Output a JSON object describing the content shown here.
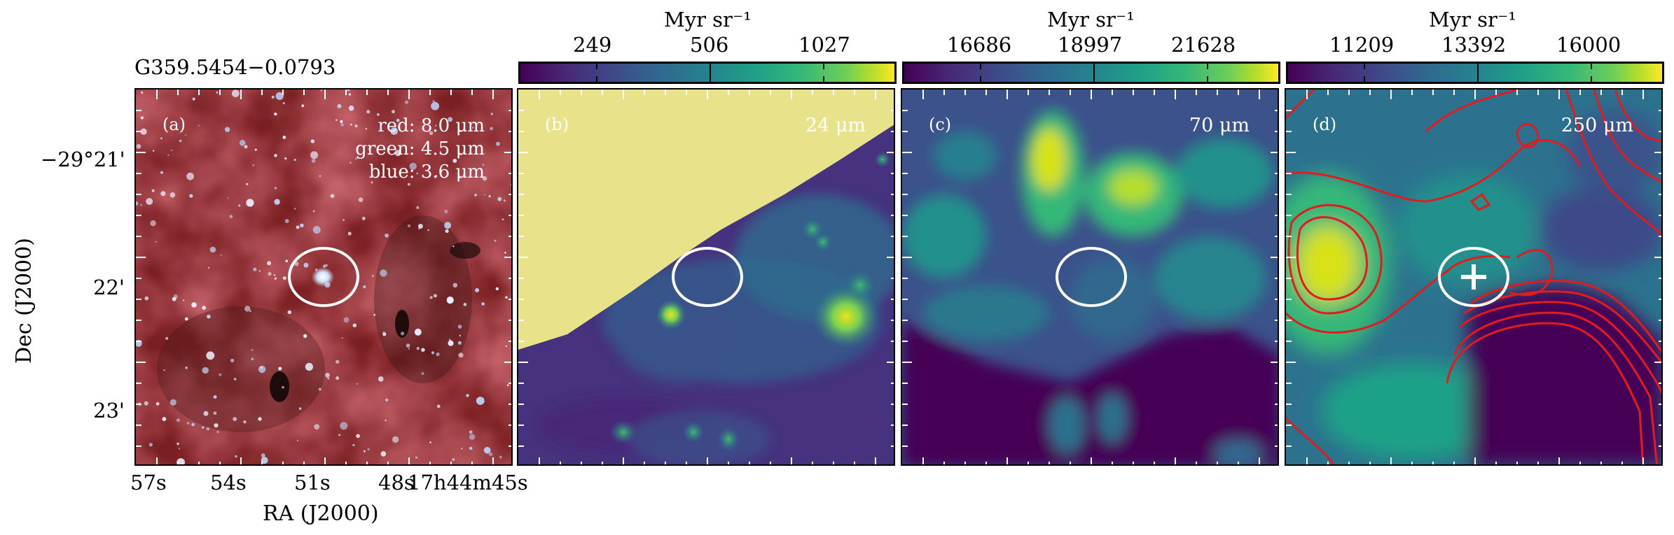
{
  "figure": {
    "source_name": "G359.5454−0.0793",
    "ra_axis_label": "RA (J2000)",
    "dec_axis_label": "Dec (J2000)",
    "ra_ticks": [
      "57s",
      "54s",
      "51s",
      "48s",
      "17h44m45s"
    ],
    "dec_ticks": [
      "−29°21'",
      "22'",
      "23'"
    ]
  },
  "panels": [
    {
      "id": "a",
      "label": "(a)",
      "legend": [
        "red: 8.0 μm",
        "green: 4.5 μm",
        "blue: 3.6 μm"
      ]
    },
    {
      "id": "b",
      "label": "(b)",
      "band": "24 μm",
      "colorbar": {
        "unit": "Myr sr⁻¹",
        "ticks": [
          "249",
          "506",
          "1027"
        ]
      }
    },
    {
      "id": "c",
      "label": "(c)",
      "band": "70 μm",
      "colorbar": {
        "unit": "Myr sr⁻¹",
        "ticks": [
          "16686",
          "18997",
          "21628"
        ]
      }
    },
    {
      "id": "d",
      "label": "(d)",
      "band": "250 μm",
      "colorbar": {
        "unit": "Myr sr⁻¹",
        "ticks": [
          "11209",
          "13392",
          "16000"
        ]
      }
    }
  ],
  "colors": {
    "colormap": "viridis",
    "marker": "#ffffff",
    "contours": "#e41a1c",
    "saturation_fill": "#e8e38a"
  }
}
